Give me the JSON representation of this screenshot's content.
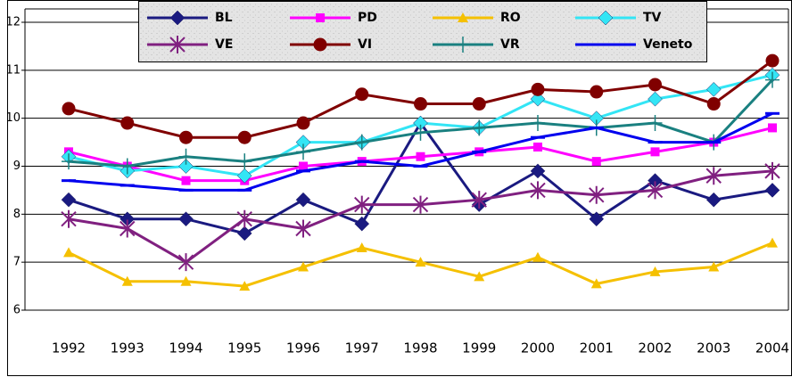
{
  "chart_data": {
    "type": "line",
    "categories": [
      "1992",
      "1993",
      "1994",
      "1995",
      "1996",
      "1997",
      "1998",
      "1999",
      "2000",
      "2001",
      "2002",
      "2003",
      "2004"
    ],
    "series": [
      {
        "name": "BL",
        "color": "#1a1a80",
        "marker": "diamond",
        "values": [
          8.3,
          7.9,
          7.9,
          7.6,
          8.3,
          7.8,
          9.9,
          8.2,
          8.9,
          7.9,
          8.7,
          8.3,
          8.5
        ]
      },
      {
        "name": "PD",
        "color": "#ff00ff",
        "marker": "square",
        "values": [
          9.3,
          9.0,
          8.7,
          8.7,
          9.0,
          9.1,
          9.2,
          9.3,
          9.4,
          9.1,
          9.3,
          9.5,
          9.8
        ]
      },
      {
        "name": "RO",
        "color": "#f5c000",
        "marker": "triangle",
        "values": [
          7.2,
          6.6,
          6.6,
          6.5,
          6.9,
          7.3,
          7.0,
          6.7,
          7.1,
          6.55,
          6.8,
          6.9,
          7.4
        ]
      },
      {
        "name": "TV",
        "color": "#33e5f5",
        "marker": "diamond",
        "values": [
          9.2,
          8.9,
          9.0,
          8.8,
          9.5,
          9.5,
          9.9,
          9.8,
          10.4,
          10.0,
          10.4,
          10.6,
          10.9
        ]
      },
      {
        "name": "VE",
        "color": "#802080",
        "marker": "asterisk",
        "values": [
          7.9,
          7.7,
          7.0,
          7.9,
          7.7,
          8.2,
          8.2,
          8.3,
          8.5,
          8.4,
          8.5,
          8.8,
          8.9
        ]
      },
      {
        "name": "VI",
        "color": "#800000",
        "marker": "circle",
        "values": [
          10.2,
          9.9,
          9.6,
          9.6,
          9.9,
          10.5,
          10.3,
          10.3,
          10.6,
          10.55,
          10.7,
          10.3,
          11.2
        ]
      },
      {
        "name": "VR",
        "color": "#1a8080",
        "marker": "plus",
        "values": [
          9.1,
          9.0,
          9.2,
          9.1,
          9.3,
          9.5,
          9.7,
          9.8,
          9.9,
          9.8,
          9.9,
          9.5,
          10.8
        ]
      },
      {
        "name": "Veneto",
        "color": "#0000ee",
        "marker": "dash",
        "values": [
          8.7,
          8.6,
          8.5,
          8.5,
          8.9,
          9.1,
          9.0,
          9.3,
          9.6,
          9.8,
          9.5,
          9.5,
          10.1
        ]
      }
    ],
    "ylim": [
      6,
      12
    ],
    "yticks": [
      6,
      7,
      8,
      9,
      10,
      11,
      12
    ],
    "grid": true
  }
}
